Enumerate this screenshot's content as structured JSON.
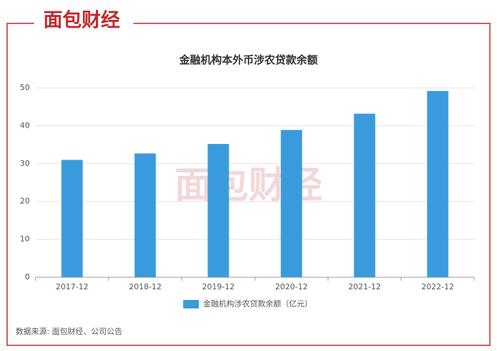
{
  "logo": "面包财经",
  "chart_data": {
    "type": "bar",
    "title": "金融机构本外币涉农贷款余额",
    "categories": [
      "2017-12",
      "2018-12",
      "2019-12",
      "2020-12",
      "2021-12",
      "2022-12"
    ],
    "series": [
      {
        "name": "金融机构涉农贷款余额（亿元）",
        "color": "#3a9bdc",
        "values": [
          31,
          32.7,
          35.2,
          38.9,
          43.2,
          49.2
        ]
      }
    ],
    "ylim": [
      0,
      50
    ],
    "yticks": [
      0,
      10,
      20,
      30,
      40,
      50
    ],
    "grid": true,
    "source": "数据来源: 面包财经、公司公告"
  }
}
